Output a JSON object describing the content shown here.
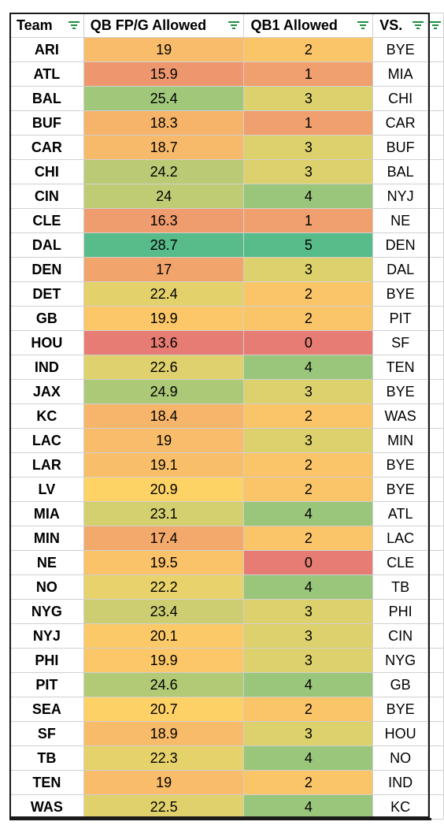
{
  "headers": {
    "team": "Team",
    "fp": "QB FP/G Allowed",
    "qb1": "QB1 Allowed",
    "vs": "VS."
  },
  "colors": {
    "filter_icon": "#1e8e3e",
    "scale_low": "#e67c73",
    "scale_mid": "#ffd666",
    "scale_high": "#57bb8a"
  },
  "rows": [
    {
      "team": "ARI",
      "fp": "19",
      "qb1": "2",
      "vs": "BYE"
    },
    {
      "team": "ATL",
      "fp": "15.9",
      "qb1": "1",
      "vs": "MIA"
    },
    {
      "team": "BAL",
      "fp": "25.4",
      "qb1": "3",
      "vs": "CHI"
    },
    {
      "team": "BUF",
      "fp": "18.3",
      "qb1": "1",
      "vs": "CAR"
    },
    {
      "team": "CAR",
      "fp": "18.7",
      "qb1": "3",
      "vs": "BUF"
    },
    {
      "team": "CHI",
      "fp": "24.2",
      "qb1": "3",
      "vs": "BAL"
    },
    {
      "team": "CIN",
      "fp": "24",
      "qb1": "4",
      "vs": "NYJ"
    },
    {
      "team": "CLE",
      "fp": "16.3",
      "qb1": "1",
      "vs": "NE"
    },
    {
      "team": "DAL",
      "fp": "28.7",
      "qb1": "5",
      "vs": "DEN"
    },
    {
      "team": "DEN",
      "fp": "17",
      "qb1": "3",
      "vs": "DAL"
    },
    {
      "team": "DET",
      "fp": "22.4",
      "qb1": "2",
      "vs": "BYE"
    },
    {
      "team": "GB",
      "fp": "19.9",
      "qb1": "2",
      "vs": "PIT"
    },
    {
      "team": "HOU",
      "fp": "13.6",
      "qb1": "0",
      "vs": "SF"
    },
    {
      "team": "IND",
      "fp": "22.6",
      "qb1": "4",
      "vs": "TEN"
    },
    {
      "team": "JAX",
      "fp": "24.9",
      "qb1": "3",
      "vs": "BYE"
    },
    {
      "team": "KC",
      "fp": "18.4",
      "qb1": "2",
      "vs": "WAS"
    },
    {
      "team": "LAC",
      "fp": "19",
      "qb1": "3",
      "vs": "MIN"
    },
    {
      "team": "LAR",
      "fp": "19.1",
      "qb1": "2",
      "vs": "BYE"
    },
    {
      "team": "LV",
      "fp": "20.9",
      "qb1": "2",
      "vs": "BYE"
    },
    {
      "team": "MIA",
      "fp": "23.1",
      "qb1": "4",
      "vs": "ATL"
    },
    {
      "team": "MIN",
      "fp": "17.4",
      "qb1": "2",
      "vs": "LAC"
    },
    {
      "team": "NE",
      "fp": "19.5",
      "qb1": "0",
      "vs": "CLE"
    },
    {
      "team": "NO",
      "fp": "22.2",
      "qb1": "4",
      "vs": "TB"
    },
    {
      "team": "NYG",
      "fp": "23.4",
      "qb1": "3",
      "vs": "PHI"
    },
    {
      "team": "NYJ",
      "fp": "20.1",
      "qb1": "3",
      "vs": "CIN"
    },
    {
      "team": "PHI",
      "fp": "19.9",
      "qb1": "3",
      "vs": "NYG"
    },
    {
      "team": "PIT",
      "fp": "24.6",
      "qb1": "4",
      "vs": "GB"
    },
    {
      "team": "SEA",
      "fp": "20.7",
      "qb1": "2",
      "vs": "BYE"
    },
    {
      "team": "SF",
      "fp": "18.9",
      "qb1": "3",
      "vs": "HOU"
    },
    {
      "team": "TB",
      "fp": "22.3",
      "qb1": "4",
      "vs": "NO"
    },
    {
      "team": "TEN",
      "fp": "19",
      "qb1": "2",
      "vs": "IND"
    },
    {
      "team": "WAS",
      "fp": "22.5",
      "qb1": "4",
      "vs": "KC"
    }
  ]
}
